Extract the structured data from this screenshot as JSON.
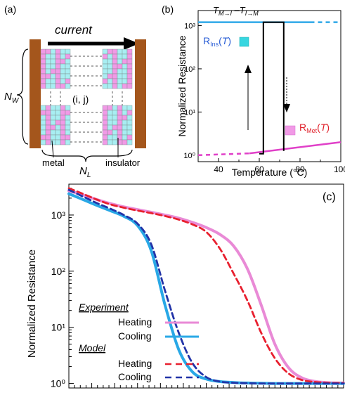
{
  "colors": {
    "heating_exp": "#e98ad6",
    "cooling_exp": "#29a8e6",
    "heating_model": "#e8202f",
    "cooling_model": "#2234a8",
    "ins_line": "#2ea8e8",
    "met_line": "#e040c8",
    "ins_label": "#2a5ed6",
    "met_label": "#e0202a",
    "electrode": "#a4561c",
    "metal_cell": "#f19ae6",
    "insulator_cell": "#a8eef2"
  },
  "panel_a": {
    "label": "(a)",
    "current_label": "current",
    "nw_label": "N",
    "nw_sub": "W",
    "nl_label": "N",
    "nl_sub": "L",
    "ij_label": "(i, j)",
    "metal_label": "metal",
    "insulator_label": "insulator"
  },
  "chart_data": [
    {
      "type": "line",
      "panel": "(b)",
      "title": "T M→I – T I→M",
      "xlabel": "Temperature (°C)",
      "ylabel": "Normalized Resistance",
      "xlim": [
        30,
        100
      ],
      "ylim_log10": [
        -0.15,
        3.35
      ],
      "x_ticks": [
        40,
        60,
        80,
        100
      ],
      "y_ticks": [
        "10⁰",
        "10¹",
        "10²",
        "10³"
      ],
      "series": [
        {
          "name": "R Ins (T)",
          "style": "solid",
          "color": "ins_line",
          "x": [
            30,
            85
          ],
          "y": [
            1200,
            1200
          ]
        },
        {
          "name": "R Ins (T)",
          "style": "dashed",
          "color": "ins_line",
          "x": [
            85,
            100
          ],
          "y": [
            1200,
            1200
          ]
        },
        {
          "name": "R Met (T)",
          "style": "dashed",
          "color": "met_line",
          "x": [
            30,
            55
          ],
          "y": [
            1.0,
            1.1
          ]
        },
        {
          "name": "R Met (T)",
          "style": "solid",
          "color": "met_line",
          "x": [
            55,
            100
          ],
          "y": [
            1.1,
            2.0
          ]
        },
        {
          "name": "hysteresis",
          "style": "solid",
          "color": "black",
          "x": [
            60,
            62,
            62,
            70,
            72,
            72
          ],
          "y": [
            1.08,
            1.08,
            1200,
            1200,
            1200,
            1.25
          ]
        }
      ],
      "annotations": [
        "R Ins (T)",
        "R Met (T)"
      ]
    },
    {
      "type": "line",
      "panel": "(c)",
      "ylabel": "Normalized Resistance",
      "ylim_log10": [
        -0.08,
        3.55
      ],
      "x": [
        0,
        0.05,
        0.1,
        0.15,
        0.2,
        0.25,
        0.3,
        0.35,
        0.4,
        0.45,
        0.5,
        0.55,
        0.6,
        0.65,
        0.7,
        0.75,
        0.8,
        0.85,
        0.9,
        0.95,
        1.0
      ],
      "y_ticks": [
        "10⁰",
        "10¹",
        "10²",
        "10³"
      ],
      "legend": {
        "experiment_title": "Experiment",
        "model_title": "Model",
        "heating": "Heating",
        "cooling": "Cooling"
      },
      "series": [
        {
          "name": "Experiment Heating",
          "color": "heating_exp",
          "style": "solid",
          "y": [
            2700,
            2300,
            1900,
            1600,
            1400,
            1250,
            1120,
            1000,
            880,
            740,
            600,
            450,
            280,
            110,
            25,
            5,
            1.9,
            1.25,
            1.08,
            1.03,
            1.02
          ]
        },
        {
          "name": "Experiment Cooling",
          "color": "cooling_exp",
          "style": "solid",
          "y": [
            2400,
            1900,
            1500,
            1200,
            950,
            650,
            230,
            25,
            4,
            1.6,
            1.2,
            1.08,
            1.04,
            1.02,
            1.01,
            1.0,
            1.0,
            1.0,
            1.0,
            1.0,
            1.0
          ]
        },
        {
          "name": "Model Heating",
          "color": "heating_model",
          "style": "dashed",
          "y": [
            3000,
            2400,
            1900,
            1550,
            1350,
            1200,
            1080,
            960,
            830,
            680,
            500,
            250,
            90,
            30,
            8,
            2.8,
            1.5,
            1.15,
            1.06,
            1.03,
            1.02
          ]
        },
        {
          "name": "Model Cooling",
          "color": "cooling_model",
          "style": "dashed",
          "y": [
            2800,
            2150,
            1650,
            1300,
            1000,
            700,
            300,
            45,
            8,
            2.3,
            1.3,
            1.08,
            1.03,
            1.01,
            1.0,
            1.0,
            1.0,
            1.0,
            1.0,
            1.0,
            1.0
          ]
        }
      ],
      "panel_label": "(c)"
    }
  ]
}
